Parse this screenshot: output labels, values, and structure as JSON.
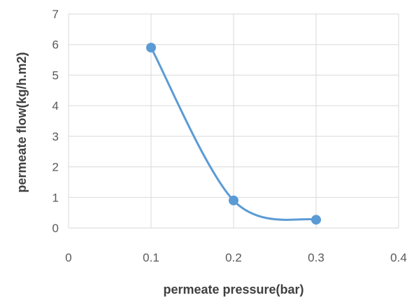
{
  "chart_data": {
    "type": "scatter",
    "title": "",
    "xlabel": "permeate pressure(bar)",
    "ylabel": "permeate flow(kg/h.m2)",
    "xlim": [
      0,
      0.4
    ],
    "ylim": [
      0,
      7
    ],
    "x_ticks": [
      "0",
      "0.1",
      "0.2",
      "0.3",
      "0.4"
    ],
    "y_ticks": [
      "0",
      "1",
      "2",
      "3",
      "4",
      "5",
      "6",
      "7"
    ],
    "grid": true,
    "smoothed_line": true,
    "legend": "none",
    "series": [
      {
        "x": [
          0.1,
          0.2,
          0.3
        ],
        "values": [
          5.9,
          0.9,
          0.27
        ],
        "color": "#5b9bd5"
      }
    ]
  }
}
